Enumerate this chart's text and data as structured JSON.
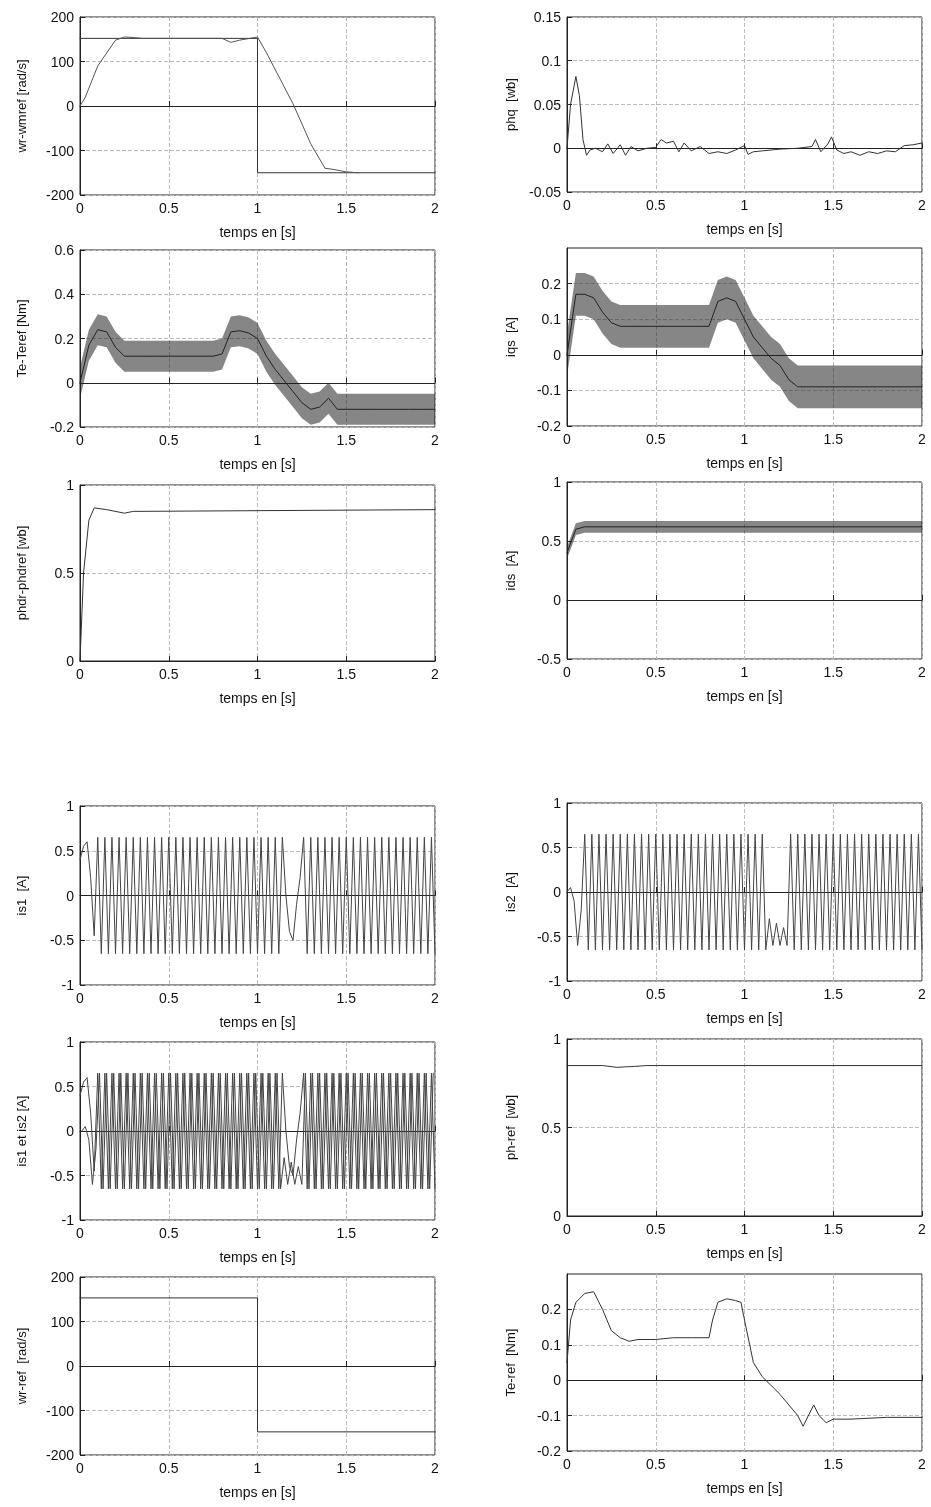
{
  "chart_data": [
    {
      "type": "line",
      "xlabel": "temps en [s]",
      "ylabel": "wr-wmref [rad/s]",
      "xlim": [
        0,
        2
      ],
      "xticks": [
        0,
        0.5,
        1,
        1.5,
        2
      ],
      "ylim": [
        -200,
        200
      ],
      "yticks": [
        -200,
        -100,
        0,
        100,
        200
      ],
      "grid": true,
      "series": [
        {
          "color": "#333333",
          "x": [
            0,
            1,
            1,
            2
          ],
          "values": [
            152,
            152,
            -150,
            -150
          ]
        },
        {
          "color": "#555555",
          "x": [
            0,
            0.03,
            0.1,
            0.2,
            0.25,
            0.3,
            0.35,
            0.8,
            0.85,
            0.9,
            1.0,
            1.05,
            1.2,
            1.3,
            1.38,
            1.42,
            1.5,
            1.57
          ],
          "values": [
            0,
            20,
            90,
            148,
            155,
            154,
            152,
            152,
            143,
            148,
            155,
            120,
            5,
            -85,
            -140,
            -142,
            -148,
            -150
          ]
        }
      ]
    },
    {
      "type": "line",
      "xlabel": "temps en [s]",
      "ylabel": "phq  [wb]",
      "xlim": [
        0,
        2
      ],
      "xticks": [
        0,
        0.5,
        1,
        1.5,
        2
      ],
      "ylim": [
        -0.05,
        0.15
      ],
      "yticks": [
        -0.05,
        0,
        0.05,
        0.1,
        0.15
      ],
      "grid": true,
      "series": [
        {
          "color": "#333333",
          "x": [
            0,
            0.02,
            0.05,
            0.07,
            0.09,
            0.11,
            0.13,
            0.16,
            0.2,
            0.23,
            0.26,
            0.3,
            0.33,
            0.36,
            0.4,
            0.45,
            0.5,
            0.53,
            0.56,
            0.6,
            0.63,
            0.66,
            0.7,
            0.75,
            0.8,
            0.85,
            0.9,
            0.95,
            1.0,
            1.02,
            1.05,
            1.1,
            1.2,
            1.3,
            1.38,
            1.4,
            1.43,
            1.47,
            1.49,
            1.52,
            1.56,
            1.6,
            1.65,
            1.7,
            1.75,
            1.8,
            1.85,
            1.9,
            1.95,
            2
          ],
          "values": [
            0,
            0.05,
            0.082,
            0.06,
            0.01,
            -0.008,
            -0.002,
            0,
            -0.004,
            0.005,
            -0.006,
            0.004,
            -0.008,
            0.002,
            -0.003,
            0,
            0.001,
            0.01,
            0.006,
            0.008,
            -0.004,
            0.006,
            -0.003,
            0.002,
            -0.006,
            -0.004,
            -0.006,
            -0.002,
            0.003,
            -0.007,
            -0.004,
            -0.003,
            -0.001,
            0,
            0.002,
            0.01,
            -0.004,
            0.005,
            0.013,
            -0.002,
            -0.006,
            -0.004,
            -0.008,
            -0.004,
            -0.006,
            -0.003,
            -0.004,
            0.003,
            0.004,
            0.006
          ]
        }
      ]
    },
    {
      "type": "line",
      "xlabel": "temps en [s]",
      "ylabel": "Te-Teref [Nm]",
      "xlim": [
        0,
        2
      ],
      "xticks": [
        0,
        0.5,
        1,
        1.5,
        2
      ],
      "ylim": [
        -0.2,
        0.6
      ],
      "yticks": [
        -0.2,
        0,
        0.2,
        0.4,
        0.6
      ],
      "grid": true,
      "series": [
        {
          "color": "#222222",
          "x": [
            0,
            0.05,
            0.1,
            0.15,
            0.2,
            0.25,
            0.3,
            0.35,
            0.4,
            0.45,
            0.5,
            0.55,
            0.6,
            0.65,
            0.7,
            0.75,
            0.8,
            0.85,
            0.9,
            0.95,
            1.0,
            1.05,
            1.1,
            1.15,
            1.2,
            1.25,
            1.3,
            1.35,
            1.4,
            1.45,
            1.5,
            1.55,
            1.6,
            1.65,
            1.7,
            1.75,
            1.8,
            1.85,
            1.9,
            1.95,
            2
          ],
          "values": [
            0,
            0.17,
            0.24,
            0.23,
            0.16,
            0.12,
            0.12,
            0.12,
            0.12,
            0.12,
            0.12,
            0.12,
            0.12,
            0.12,
            0.12,
            0.12,
            0.13,
            0.23,
            0.235,
            0.225,
            0.2,
            0.12,
            0.06,
            0.01,
            -0.04,
            -0.09,
            -0.12,
            -0.11,
            -0.07,
            -0.12,
            -0.12,
            -0.12,
            -0.12,
            -0.12,
            -0.12,
            -0.12,
            -0.12,
            -0.12,
            -0.12,
            -0.12,
            -0.12
          ],
          "lower": [
            -0.07,
            0.1,
            0.17,
            0.16,
            0.09,
            0.05,
            0.05,
            0.05,
            0.05,
            0.05,
            0.05,
            0.05,
            0.05,
            0.05,
            0.05,
            0.05,
            0.06,
            0.16,
            0.165,
            0.155,
            0.13,
            0.05,
            -0.01,
            -0.06,
            -0.11,
            -0.16,
            -0.19,
            -0.18,
            -0.14,
            -0.19,
            -0.19,
            -0.19,
            -0.19,
            -0.19,
            -0.19,
            -0.19,
            -0.19,
            -0.19,
            -0.19,
            -0.19,
            -0.19
          ],
          "upper": [
            0.07,
            0.24,
            0.31,
            0.3,
            0.23,
            0.19,
            0.19,
            0.19,
            0.19,
            0.19,
            0.19,
            0.19,
            0.19,
            0.19,
            0.19,
            0.19,
            0.2,
            0.3,
            0.305,
            0.295,
            0.27,
            0.19,
            0.13,
            0.08,
            0.03,
            -0.02,
            -0.05,
            -0.04,
            0,
            -0.05,
            -0.05,
            -0.05,
            -0.05,
            -0.05,
            -0.05,
            -0.05,
            -0.05,
            -0.05,
            -0.05,
            -0.05,
            -0.05
          ]
        }
      ]
    },
    {
      "type": "line",
      "xlabel": "temps en [s]",
      "ylabel": "iqs  [A]",
      "xlim": [
        0,
        2
      ],
      "xticks": [
        0,
        0.5,
        1,
        1.5,
        2
      ],
      "ylim": [
        -0.2,
        0.3
      ],
      "yticks": [
        -0.2,
        -0.1,
        0,
        0.1,
        0.2
      ],
      "grid": true,
      "series": [
        {
          "color": "#222222",
          "x": [
            0,
            0.05,
            0.1,
            0.15,
            0.2,
            0.25,
            0.3,
            0.35,
            0.4,
            0.45,
            0.5,
            0.55,
            0.6,
            0.65,
            0.7,
            0.75,
            0.8,
            0.85,
            0.9,
            0.95,
            1.0,
            1.05,
            1.1,
            1.15,
            1.2,
            1.25,
            1.3,
            1.35,
            1.4,
            1.45,
            1.5,
            1.55,
            1.6,
            1.65,
            1.7,
            1.75,
            1.8,
            1.85,
            1.9,
            1.95,
            2
          ],
          "values": [
            0,
            0.17,
            0.17,
            0.16,
            0.12,
            0.09,
            0.08,
            0.08,
            0.08,
            0.08,
            0.08,
            0.08,
            0.08,
            0.08,
            0.08,
            0.08,
            0.08,
            0.15,
            0.16,
            0.15,
            0.1,
            0.05,
            0.02,
            -0.01,
            -0.03,
            -0.07,
            -0.09,
            -0.09,
            -0.09,
            -0.09,
            -0.09,
            -0.09,
            -0.09,
            -0.09,
            -0.09,
            -0.09,
            -0.09,
            -0.09,
            -0.09,
            -0.09,
            -0.09
          ],
          "lower": [
            -0.06,
            0.11,
            0.11,
            0.1,
            0.06,
            0.03,
            0.02,
            0.02,
            0.02,
            0.02,
            0.02,
            0.02,
            0.02,
            0.02,
            0.02,
            0.02,
            0.02,
            0.09,
            0.1,
            0.09,
            0.04,
            -0.01,
            -0.04,
            -0.07,
            -0.09,
            -0.13,
            -0.15,
            -0.15,
            -0.15,
            -0.15,
            -0.15,
            -0.15,
            -0.15,
            -0.15,
            -0.15,
            -0.15,
            -0.15,
            -0.15,
            -0.15,
            -0.15,
            -0.15
          ],
          "upper": [
            0.06,
            0.23,
            0.23,
            0.22,
            0.18,
            0.15,
            0.14,
            0.14,
            0.14,
            0.14,
            0.14,
            0.14,
            0.14,
            0.14,
            0.14,
            0.14,
            0.14,
            0.21,
            0.22,
            0.21,
            0.16,
            0.11,
            0.08,
            0.05,
            0.03,
            -0.01,
            -0.03,
            -0.03,
            -0.03,
            -0.03,
            -0.03,
            -0.03,
            -0.03,
            -0.03,
            -0.03,
            -0.03,
            -0.03,
            -0.03,
            -0.03,
            -0.03,
            -0.03
          ]
        }
      ]
    },
    {
      "type": "line",
      "xlabel": "temps en [s]",
      "ylabel": "phdr-phdref [wb]",
      "xlim": [
        0,
        2
      ],
      "xticks": [
        0,
        0.5,
        1,
        1.5,
        2
      ],
      "ylim": [
        0,
        1
      ],
      "yticks": [
        0,
        0.5,
        1
      ],
      "grid": true,
      "series": [
        {
          "color": "#333333",
          "x": [
            0,
            0.02,
            0.05,
            0.08,
            0.15,
            0.25,
            0.3,
            2
          ],
          "values": [
            0,
            0.5,
            0.8,
            0.87,
            0.86,
            0.84,
            0.85,
            0.86
          ]
        }
      ]
    },
    {
      "type": "line",
      "xlabel": "temps en [s]",
      "ylabel": "ids  [A]",
      "xlim": [
        0,
        2
      ],
      "xticks": [
        0,
        0.5,
        1,
        1.5,
        2
      ],
      "ylim": [
        -0.5,
        1
      ],
      "yticks": [
        -0.5,
        0,
        0.5,
        1
      ],
      "grid": true,
      "series": [
        {
          "color": "#222222",
          "x": [
            0,
            0.05,
            0.1,
            0.15,
            0.2,
            0.25,
            0.3,
            0.35,
            0.4,
            0.45,
            0.5,
            0.55,
            0.6,
            0.65,
            0.7,
            0.75,
            0.8,
            0.85,
            0.9,
            0.95,
            1.0,
            1.05,
            1.1,
            1.15,
            1.2,
            1.25,
            1.3,
            1.35,
            1.4,
            1.45,
            1.5,
            1.55,
            1.6,
            1.65,
            1.7,
            1.75,
            1.8,
            1.85,
            1.9,
            1.95,
            2
          ],
          "values": [
            0.4,
            0.6,
            0.62,
            0.62,
            0.62,
            0.62,
            0.62,
            0.62,
            0.62,
            0.62,
            0.62,
            0.62,
            0.62,
            0.62,
            0.62,
            0.62,
            0.62,
            0.62,
            0.62,
            0.62,
            0.62,
            0.62,
            0.62,
            0.62,
            0.62,
            0.62,
            0.62,
            0.62,
            0.62,
            0.62,
            0.62,
            0.62,
            0.62,
            0.62,
            0.62,
            0.62,
            0.62,
            0.62,
            0.62,
            0.62,
            0.62
          ],
          "lower": [
            0.35,
            0.55,
            0.57,
            0.57,
            0.57,
            0.57,
            0.57,
            0.57,
            0.57,
            0.57,
            0.57,
            0.57,
            0.57,
            0.57,
            0.57,
            0.57,
            0.57,
            0.57,
            0.57,
            0.57,
            0.57,
            0.57,
            0.57,
            0.57,
            0.57,
            0.57,
            0.57,
            0.57,
            0.57,
            0.57,
            0.57,
            0.57,
            0.57,
            0.57,
            0.57,
            0.57,
            0.57,
            0.57,
            0.57,
            0.57,
            0.57
          ],
          "upper": [
            0.45,
            0.65,
            0.67,
            0.67,
            0.67,
            0.67,
            0.67,
            0.67,
            0.67,
            0.67,
            0.67,
            0.67,
            0.67,
            0.67,
            0.67,
            0.67,
            0.67,
            0.67,
            0.67,
            0.67,
            0.67,
            0.67,
            0.67,
            0.67,
            0.67,
            0.67,
            0.67,
            0.67,
            0.67,
            0.67,
            0.67,
            0.67,
            0.67,
            0.67,
            0.67,
            0.67,
            0.67,
            0.67,
            0.67,
            0.67,
            0.67
          ]
        }
      ]
    },
    {
      "type": "line",
      "xlabel": "temps en [s]",
      "ylabel": "is1  [A]",
      "xlim": [
        0,
        2
      ],
      "xticks": [
        0,
        0.5,
        1,
        1.5,
        2
      ],
      "ylim": [
        -1,
        1
      ],
      "yticks": [
        -1,
        -0.5,
        0,
        0.5,
        1
      ],
      "grid": true,
      "series": [
        {
          "color": "#444444",
          "x": [
            0,
            0.02,
            0.04,
            0.06,
            0.08,
            0.1,
            0.12,
            0.14,
            0.16,
            0.18,
            0.2,
            0.22,
            0.24,
            0.26,
            0.28,
            0.3,
            0.32,
            0.34,
            0.36,
            0.38,
            0.4,
            0.42,
            0.44,
            0.46,
            0.48,
            0.5,
            0.52,
            0.54,
            0.56,
            0.58,
            0.6,
            0.62,
            0.64,
            0.66,
            0.68,
            0.7,
            0.72,
            0.74,
            0.76,
            0.78,
            0.8,
            0.82,
            0.84,
            0.86,
            0.88,
            0.9,
            0.92,
            0.94,
            0.96,
            0.98,
            1.0,
            1.02,
            1.04,
            1.06,
            1.08,
            1.1,
            1.12,
            1.14,
            1.16,
            1.18,
            1.2,
            1.22,
            1.24,
            1.26,
            1.28,
            1.3,
            1.32,
            1.34,
            1.36,
            1.38,
            1.4,
            1.42,
            1.44,
            1.46,
            1.48,
            1.5,
            1.52,
            1.54,
            1.56,
            1.58,
            1.6,
            1.62,
            1.64,
            1.66,
            1.68,
            1.7,
            1.72,
            1.74,
            1.76,
            1.78,
            1.8,
            1.82,
            1.84,
            1.86,
            1.88,
            1.9,
            1.92,
            1.94,
            1.96,
            1.98,
            2
          ],
          "values": [
            0.4,
            0.55,
            0.6,
            0.2,
            -0.45,
            0.65,
            -0.65,
            0.65,
            -0.65,
            0.65,
            -0.65,
            0.65,
            -0.65,
            0.65,
            -0.65,
            0.65,
            -0.65,
            0.65,
            -0.65,
            0.65,
            -0.65,
            0.65,
            -0.65,
            0.65,
            -0.65,
            0.65,
            -0.65,
            0.65,
            -0.65,
            0.65,
            -0.65,
            0.65,
            -0.65,
            0.65,
            -0.65,
            0.65,
            -0.65,
            0.65,
            -0.65,
            0.65,
            -0.65,
            0.65,
            -0.65,
            0.65,
            -0.65,
            0.65,
            -0.65,
            0.65,
            -0.65,
            0.65,
            -0.65,
            0.65,
            -0.65,
            0.65,
            -0.65,
            0.65,
            -0.65,
            0.65,
            0,
            -0.4,
            -0.5,
            -0.1,
            0.2,
            0.65,
            -0.65,
            0.65,
            -0.65,
            0.65,
            -0.65,
            0.65,
            -0.65,
            0.65,
            -0.65,
            0.65,
            -0.65,
            0.65,
            -0.65,
            0.65,
            -0.65,
            0.65,
            -0.65,
            0.65,
            -0.65,
            0.65,
            -0.65,
            0.65,
            -0.65,
            0.65,
            -0.65,
            0.65,
            -0.65,
            0.65,
            -0.65,
            0.65,
            -0.65,
            0.65,
            -0.65,
            0.65,
            -0.65,
            0.65,
            -0.65
          ]
        }
      ]
    },
    {
      "type": "line",
      "xlabel": "temps en [s]",
      "ylabel": "is2  [A]",
      "xlim": [
        0,
        2
      ],
      "xticks": [
        0,
        0.5,
        1,
        1.5,
        2
      ],
      "ylim": [
        -1,
        1
      ],
      "yticks": [
        -1,
        -0.5,
        0,
        0.5,
        1
      ],
      "grid": true,
      "series": [
        {
          "color": "#444444",
          "x": [
            0,
            0.02,
            0.04,
            0.06,
            0.08,
            0.1,
            0.12,
            0.14,
            0.16,
            0.18,
            0.2,
            0.22,
            0.24,
            0.26,
            0.28,
            0.3,
            0.32,
            0.34,
            0.36,
            0.38,
            0.4,
            0.42,
            0.44,
            0.46,
            0.48,
            0.5,
            0.52,
            0.54,
            0.56,
            0.58,
            0.6,
            0.62,
            0.64,
            0.66,
            0.68,
            0.7,
            0.72,
            0.74,
            0.76,
            0.78,
            0.8,
            0.82,
            0.84,
            0.86,
            0.88,
            0.9,
            0.92,
            0.94,
            0.96,
            0.98,
            1.0,
            1.02,
            1.04,
            1.06,
            1.08,
            1.1,
            1.12,
            1.14,
            1.16,
            1.18,
            1.2,
            1.22,
            1.24,
            1.26,
            1.28,
            1.3,
            1.32,
            1.34,
            1.36,
            1.38,
            1.4,
            1.42,
            1.44,
            1.46,
            1.48,
            1.5,
            1.52,
            1.54,
            1.56,
            1.58,
            1.6,
            1.62,
            1.64,
            1.66,
            1.68,
            1.7,
            1.72,
            1.74,
            1.76,
            1.78,
            1.8,
            1.82,
            1.84,
            1.86,
            1.88,
            1.9,
            1.92,
            1.94,
            1.96,
            1.98,
            2
          ],
          "values": [
            0,
            0.05,
            -0.1,
            -0.6,
            -0.2,
            0.65,
            -0.65,
            0.65,
            -0.65,
            0.65,
            -0.65,
            0.65,
            -0.65,
            0.65,
            -0.65,
            0.65,
            -0.65,
            0.65,
            -0.65,
            0.65,
            -0.65,
            0.65,
            -0.65,
            0.65,
            -0.65,
            0.65,
            -0.65,
            0.65,
            -0.65,
            0.65,
            -0.65,
            0.65,
            -0.65,
            0.65,
            -0.65,
            0.65,
            -0.65,
            0.65,
            -0.65,
            0.65,
            -0.65,
            0.65,
            -0.65,
            0.65,
            -0.65,
            0.65,
            -0.65,
            0.65,
            -0.65,
            0.65,
            -0.65,
            0.65,
            -0.65,
            0.65,
            -0.65,
            0.65,
            -0.65,
            -0.3,
            -0.6,
            -0.35,
            -0.6,
            -0.4,
            -0.6,
            0.65,
            -0.65,
            0.65,
            -0.65,
            0.65,
            -0.65,
            0.65,
            -0.65,
            0.65,
            -0.65,
            0.65,
            -0.65,
            0.65,
            -0.65,
            0.65,
            -0.65,
            0.65,
            -0.65,
            0.65,
            -0.65,
            0.65,
            -0.65,
            0.65,
            -0.65,
            0.65,
            -0.65,
            0.65,
            -0.65,
            0.65,
            -0.65,
            0.65,
            -0.65,
            0.65,
            -0.65,
            0.65,
            -0.65,
            0.65,
            -0.65
          ]
        }
      ]
    },
    {
      "type": "line",
      "xlabel": "temps en [s]",
      "ylabel": "is1 et is2 [A]",
      "xlim": [
        0,
        2
      ],
      "xticks": [
        0,
        0.5,
        1,
        1.5,
        2
      ],
      "ylim": [
        -1,
        1
      ],
      "yticks": [
        -1,
        -0.5,
        0,
        0.5,
        1
      ],
      "grid": true,
      "series": [
        {
          "color": "#444444",
          "x": [
            0,
            0.02,
            0.04,
            0.06,
            0.08,
            0.1,
            0.12,
            0.14,
            0.16,
            0.18,
            0.2,
            0.22,
            0.24,
            0.26,
            0.28,
            0.3,
            0.32,
            0.34,
            0.36,
            0.38,
            0.4,
            0.42,
            0.44,
            0.46,
            0.48,
            0.5,
            0.52,
            0.54,
            0.56,
            0.58,
            0.6,
            0.62,
            0.64,
            0.66,
            0.68,
            0.7,
            0.72,
            0.74,
            0.76,
            0.78,
            0.8,
            0.82,
            0.84,
            0.86,
            0.88,
            0.9,
            0.92,
            0.94,
            0.96,
            0.98,
            1.0,
            1.02,
            1.04,
            1.06,
            1.08,
            1.1,
            1.12,
            1.14,
            1.16,
            1.18,
            1.2,
            1.22,
            1.24,
            1.26,
            1.28,
            1.3,
            1.32,
            1.34,
            1.36,
            1.38,
            1.4,
            1.42,
            1.44,
            1.46,
            1.48,
            1.5,
            1.52,
            1.54,
            1.56,
            1.58,
            1.6,
            1.62,
            1.64,
            1.66,
            1.68,
            1.7,
            1.72,
            1.74,
            1.76,
            1.78,
            1.8,
            1.82,
            1.84,
            1.86,
            1.88,
            1.9,
            1.92,
            1.94,
            1.96,
            1.98,
            2
          ],
          "values": [
            0.4,
            0.55,
            0.6,
            0.2,
            -0.45,
            0.65,
            -0.65,
            0.65,
            -0.65,
            0.65,
            -0.65,
            0.65,
            -0.65,
            0.65,
            -0.65,
            0.65,
            -0.65,
            0.65,
            -0.65,
            0.65,
            -0.65,
            0.65,
            -0.65,
            0.65,
            -0.65,
            0.65,
            -0.65,
            0.65,
            -0.65,
            0.65,
            -0.65,
            0.65,
            -0.65,
            0.65,
            -0.65,
            0.65,
            -0.65,
            0.65,
            -0.65,
            0.65,
            -0.65,
            0.65,
            -0.65,
            0.65,
            -0.65,
            0.65,
            -0.65,
            0.65,
            -0.65,
            0.65,
            -0.65,
            0.65,
            -0.65,
            0.65,
            -0.65,
            0.65,
            -0.65,
            0.65,
            0,
            -0.4,
            -0.5,
            -0.1,
            0.2,
            0.65,
            -0.65,
            0.65,
            -0.65,
            0.65,
            -0.65,
            0.65,
            -0.65,
            0.65,
            -0.65,
            0.65,
            -0.65,
            0.65,
            -0.65,
            0.65,
            -0.65,
            0.65,
            -0.65,
            0.65,
            -0.65,
            0.65,
            -0.65,
            0.65,
            -0.65,
            0.65,
            -0.65,
            0.65,
            -0.65,
            0.65,
            -0.65,
            0.65,
            -0.65,
            0.65,
            -0.65,
            0.65,
            -0.65,
            0.65,
            -0.65
          ]
        },
        {
          "color": "#444444",
          "x": [
            0.01,
            0.03,
            0.05,
            0.07,
            0.09,
            0.11,
            0.13,
            0.15,
            0.17,
            0.19,
            0.21,
            0.23,
            0.25,
            0.27,
            0.29,
            0.31,
            0.33,
            0.35,
            0.37,
            0.39,
            0.41,
            0.43,
            0.45,
            0.47,
            0.49,
            0.51,
            0.53,
            0.55,
            0.57,
            0.59,
            0.61,
            0.63,
            0.65,
            0.67,
            0.69,
            0.71,
            0.73,
            0.75,
            0.77,
            0.79,
            0.81,
            0.83,
            0.85,
            0.87,
            0.89,
            0.91,
            0.93,
            0.95,
            0.97,
            0.99,
            1.01,
            1.03,
            1.05,
            1.07,
            1.09,
            1.11,
            1.13,
            1.15,
            1.17,
            1.19,
            1.21,
            1.23,
            1.25,
            1.27,
            1.29,
            1.31,
            1.33,
            1.35,
            1.37,
            1.39,
            1.41,
            1.43,
            1.45,
            1.47,
            1.49,
            1.51,
            1.53,
            1.55,
            1.57,
            1.59,
            1.61,
            1.63,
            1.65,
            1.67,
            1.69,
            1.71,
            1.73,
            1.75,
            1.77,
            1.79,
            1.81,
            1.83,
            1.85,
            1.87,
            1.89,
            1.91,
            1.93,
            1.95,
            1.97,
            1.99
          ],
          "values": [
            0,
            0.05,
            -0.1,
            -0.6,
            -0.2,
            0.65,
            -0.65,
            0.65,
            -0.65,
            0.65,
            -0.65,
            0.65,
            -0.65,
            0.65,
            -0.65,
            0.65,
            -0.65,
            0.65,
            -0.65,
            0.65,
            -0.65,
            0.65,
            -0.65,
            0.65,
            -0.65,
            0.65,
            -0.65,
            0.65,
            -0.65,
            0.65,
            -0.65,
            0.65,
            -0.65,
            0.65,
            -0.65,
            0.65,
            -0.65,
            0.65,
            -0.65,
            0.65,
            -0.65,
            0.65,
            -0.65,
            0.65,
            -0.65,
            0.65,
            -0.65,
            0.65,
            -0.65,
            0.65,
            -0.65,
            0.65,
            -0.65,
            0.65,
            -0.65,
            0.65,
            -0.65,
            -0.3,
            -0.6,
            -0.35,
            -0.6,
            -0.4,
            -0.6,
            0.65,
            -0.65,
            0.65,
            -0.65,
            0.65,
            -0.65,
            0.65,
            -0.65,
            0.65,
            -0.65,
            0.65,
            -0.65,
            0.65,
            -0.65,
            0.65,
            -0.65,
            0.65,
            -0.65,
            0.65,
            -0.65,
            0.65,
            -0.65,
            0.65,
            -0.65,
            0.65,
            -0.65,
            0.65,
            -0.65,
            0.65,
            -0.65,
            0.65,
            -0.65,
            0.65,
            -0.65,
            0.65,
            -0.65,
            0.65
          ]
        }
      ]
    },
    {
      "type": "line",
      "xlabel": "temps en [s]",
      "ylabel": "ph-ref  [wb]",
      "xlim": [
        0,
        2
      ],
      "xticks": [
        0,
        0.5,
        1,
        1.5,
        2
      ],
      "ylim": [
        0,
        1
      ],
      "yticks": [
        0,
        0.5,
        1
      ],
      "grid": true,
      "series": [
        {
          "color": "#333333",
          "x": [
            0,
            0.2,
            0.28,
            0.38,
            0.45,
            2
          ],
          "values": [
            0.85,
            0.85,
            0.84,
            0.845,
            0.85,
            0.85
          ]
        }
      ]
    },
    {
      "type": "line",
      "xlabel": "temps en [s]",
      "ylabel": "wr-ref  [rad/s]",
      "xlim": [
        0,
        2
      ],
      "xticks": [
        0,
        0.5,
        1,
        1.5,
        2
      ],
      "ylim": [
        -200,
        200
      ],
      "yticks": [
        -200,
        -100,
        0,
        100,
        200
      ],
      "grid": true,
      "series": [
        {
          "color": "#333333",
          "x": [
            0,
            1,
            1,
            2
          ],
          "values": [
            153,
            153,
            -148,
            -148
          ]
        }
      ]
    },
    {
      "type": "line",
      "xlabel": "temps en [s]",
      "ylabel": "Te-ref  [Nm]",
      "xlim": [
        0,
        2
      ],
      "xticks": [
        0,
        0.5,
        1,
        1.5,
        2
      ],
      "ylim": [
        -0.2,
        0.3
      ],
      "yticks": [
        -0.2,
        -0.1,
        0,
        0.1,
        0.2
      ],
      "grid": true,
      "series": [
        {
          "color": "#333333",
          "x": [
            0,
            0.02,
            0.05,
            0.1,
            0.15,
            0.2,
            0.25,
            0.3,
            0.35,
            0.4,
            0.5,
            0.6,
            0.7,
            0.8,
            0.82,
            0.85,
            0.9,
            0.95,
            0.98,
            1.0,
            1.05,
            1.1,
            1.2,
            1.3,
            1.33,
            1.37,
            1.39,
            1.42,
            1.46,
            1.5,
            1.6,
            1.8,
            2
          ],
          "values": [
            0.05,
            0.17,
            0.22,
            0.245,
            0.25,
            0.2,
            0.14,
            0.12,
            0.11,
            0.115,
            0.115,
            0.12,
            0.12,
            0.12,
            0.17,
            0.22,
            0.23,
            0.225,
            0.22,
            0.17,
            0.05,
            0.01,
            -0.04,
            -0.1,
            -0.13,
            -0.09,
            -0.07,
            -0.1,
            -0.12,
            -0.11,
            -0.11,
            -0.105,
            -0.105
          ]
        }
      ]
    }
  ]
}
